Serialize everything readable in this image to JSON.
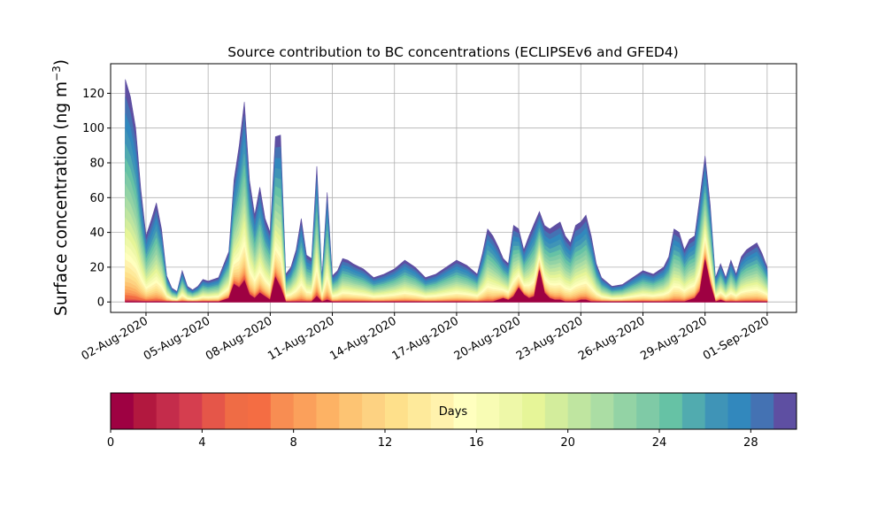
{
  "chart_data": {
    "type": "area",
    "title": "Source contribution to BC concentrations (ECLIPSEv6 and GFED4)",
    "ylabel": "Surface concentration (ng m",
    "ylabel_sup": "−3",
    "ylabel_close": ")",
    "ylim": [
      -6,
      137
    ],
    "yticks": [
      0,
      20,
      40,
      60,
      80,
      100,
      120
    ],
    "xlim": [
      "2020-07-31T07:00",
      "2020-09-02T10:00"
    ],
    "xtick_dates": [
      "2020-08-02",
      "2020-08-05",
      "2020-08-08",
      "2020-08-11",
      "2020-08-14",
      "2020-08-17",
      "2020-08-20",
      "2020-08-23",
      "2020-08-26",
      "2020-08-29",
      "2020-09-01"
    ],
    "xtick_labels": [
      "02-Aug-2020",
      "05-Aug-2020",
      "08-Aug-2020",
      "11-Aug-2020",
      "14-Aug-2020",
      "17-Aug-2020",
      "20-Aug-2020",
      "23-Aug-2020",
      "26-Aug-2020",
      "29-Aug-2020",
      "01-Sep-2020"
    ],
    "grid": true,
    "total": {
      "x": [
        "2020-08-01T00:00",
        "2020-08-01T06:00",
        "2020-08-01T12:00",
        "2020-08-01T18:00",
        "2020-08-02T00:00",
        "2020-08-02T06:00",
        "2020-08-02T12:00",
        "2020-08-02T18:00",
        "2020-08-03T00:00",
        "2020-08-03T06:00",
        "2020-08-03T12:00",
        "2020-08-03T18:00",
        "2020-08-04T00:00",
        "2020-08-04T06:00",
        "2020-08-04T12:00",
        "2020-08-04T18:00",
        "2020-08-05T00:00",
        "2020-08-05T12:00",
        "2020-08-06T00:00",
        "2020-08-06T06:00",
        "2020-08-06T12:00",
        "2020-08-06T18:00",
        "2020-08-07T00:00",
        "2020-08-07T06:00",
        "2020-08-07T12:00",
        "2020-08-07T18:00",
        "2020-08-08T00:00",
        "2020-08-08T06:00",
        "2020-08-08T12:00",
        "2020-08-08T18:00",
        "2020-08-09T00:00",
        "2020-08-09T06:00",
        "2020-08-09T12:00",
        "2020-08-09T18:00",
        "2020-08-10T00:00",
        "2020-08-10T06:00",
        "2020-08-10T12:00",
        "2020-08-10T18:00",
        "2020-08-11T00:00",
        "2020-08-11T06:00",
        "2020-08-11T12:00",
        "2020-08-11T18:00",
        "2020-08-12T00:00",
        "2020-08-12T12:00",
        "2020-08-13T00:00",
        "2020-08-13T12:00",
        "2020-08-14T00:00",
        "2020-08-14T12:00",
        "2020-08-15T00:00",
        "2020-08-15T12:00",
        "2020-08-16T00:00",
        "2020-08-16T12:00",
        "2020-08-17T00:00",
        "2020-08-17T12:00",
        "2020-08-18T00:00",
        "2020-08-18T06:00",
        "2020-08-18T12:00",
        "2020-08-18T18:00",
        "2020-08-19T00:00",
        "2020-08-19T06:00",
        "2020-08-19T12:00",
        "2020-08-19T18:00",
        "2020-08-20T00:00",
        "2020-08-20T06:00",
        "2020-08-20T12:00",
        "2020-08-20T18:00",
        "2020-08-21T00:00",
        "2020-08-21T06:00",
        "2020-08-21T12:00",
        "2020-08-21T18:00",
        "2020-08-22T00:00",
        "2020-08-22T06:00",
        "2020-08-22T12:00",
        "2020-08-22T18:00",
        "2020-08-23T00:00",
        "2020-08-23T06:00",
        "2020-08-23T12:00",
        "2020-08-23T18:00",
        "2020-08-24T00:00",
        "2020-08-24T12:00",
        "2020-08-25T00:00",
        "2020-08-25T12:00",
        "2020-08-26T00:00",
        "2020-08-26T12:00",
        "2020-08-27T00:00",
        "2020-08-27T06:00",
        "2020-08-27T12:00",
        "2020-08-27T18:00",
        "2020-08-28T00:00",
        "2020-08-28T06:00",
        "2020-08-28T12:00",
        "2020-08-28T18:00",
        "2020-08-29T00:00",
        "2020-08-29T06:00",
        "2020-08-29T12:00",
        "2020-08-29T18:00",
        "2020-08-30T00:00",
        "2020-08-30T06:00",
        "2020-08-30T12:00",
        "2020-08-30T18:00",
        "2020-08-31T00:00",
        "2020-08-31T06:00",
        "2020-08-31T12:00",
        "2020-08-31T18:00",
        "2020-09-01T00:00"
      ],
      "y": [
        128,
        118,
        100,
        65,
        38,
        47,
        57,
        42,
        15,
        8,
        6,
        18,
        9,
        7,
        9,
        13,
        12,
        14,
        29,
        70,
        90,
        115,
        70,
        50,
        66,
        48,
        40,
        95,
        96,
        16,
        20,
        30,
        48,
        27,
        25,
        78,
        14,
        63,
        15,
        18,
        25,
        24,
        22,
        19,
        14,
        16,
        19,
        24,
        20,
        14,
        16,
        20,
        24,
        21,
        16,
        28,
        42,
        38,
        32,
        25,
        22,
        44,
        42,
        30,
        38,
        45,
        52,
        44,
        42,
        44,
        46,
        38,
        34,
        44,
        46,
        50,
        38,
        22,
        14,
        9,
        10,
        14,
        18,
        16,
        20,
        26,
        42,
        40,
        30,
        36,
        38,
        60,
        84,
        56,
        14,
        22,
        14,
        24,
        16,
        26,
        30,
        32,
        34,
        28,
        20
      ]
    },
    "band": {
      "red_base": [
        0,
        0,
        0,
        0,
        0,
        0,
        0,
        0,
        0,
        0,
        0,
        0,
        0,
        0,
        0,
        0,
        0,
        0,
        2,
        10,
        8,
        12,
        4,
        2,
        5,
        3,
        1,
        14,
        8,
        0,
        0,
        0,
        0,
        0,
        0,
        3,
        0,
        1,
        0,
        0,
        0,
        0,
        0,
        0,
        0,
        0,
        0,
        0,
        0,
        0,
        0,
        0,
        0,
        0,
        0,
        0,
        0,
        0,
        1,
        2,
        1,
        3,
        8,
        4,
        2,
        3,
        18,
        5,
        2,
        1,
        1,
        0,
        0,
        0,
        1,
        1,
        0,
        0,
        0,
        0,
        0,
        0,
        0,
        0,
        0,
        0,
        0,
        0,
        0,
        1,
        2,
        6,
        24,
        10,
        0,
        1,
        0,
        0,
        0,
        0,
        0,
        0,
        0,
        0,
        0
      ]
    },
    "colorbar": {
      "label": "Days",
      "range": [
        0,
        30
      ],
      "ticks": [
        0,
        4,
        8,
        12,
        16,
        20,
        24,
        28
      ],
      "tick_labels": [
        "0",
        "4",
        "8",
        "12",
        "16",
        "20",
        "24",
        "28"
      ],
      "colors": [
        "#9e0142",
        "#b2183f",
        "#c42c4b",
        "#d53e4f",
        "#e55649",
        "#ef6c45",
        "#f46d43",
        "#f88d52",
        "#fba05b",
        "#fdb264",
        "#fdc473",
        "#fdd282",
        "#fee08b",
        "#feea9b",
        "#fff2ad",
        "#ffffbf",
        "#f8fcb4",
        "#eef8a8",
        "#e6f598",
        "#d3ed9c",
        "#bfe5a0",
        "#abdda4",
        "#93d3a5",
        "#7fcaa6",
        "#66c2a5",
        "#51abaf",
        "#3f94b7",
        "#3288bd",
        "#4472b3",
        "#5e4fa2"
      ]
    }
  }
}
